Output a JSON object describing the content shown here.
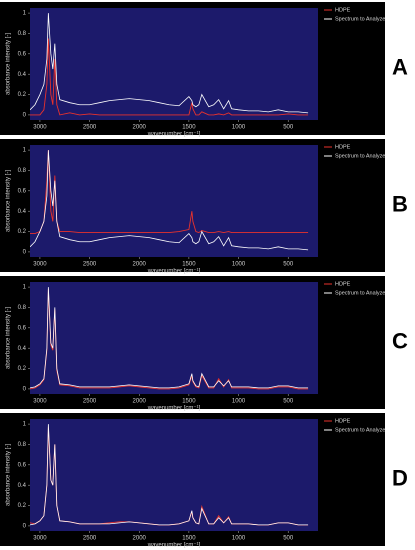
{
  "chart_data": [
    {
      "type": "line",
      "label": "A",
      "x_label": "wavenumber [cm⁻¹]",
      "y_label": "absorbance intensity [-]",
      "background": "#1c1a6b",
      "legend": "right",
      "x": [
        3100,
        3050,
        3000,
        2960,
        2930,
        2915,
        2890,
        2870,
        2850,
        2830,
        2800,
        2700,
        2600,
        2500,
        2400,
        2300,
        2200,
        2100,
        2000,
        1900,
        1800,
        1700,
        1600,
        1500,
        1470,
        1460,
        1430,
        1400,
        1370,
        1300,
        1250,
        1200,
        1150,
        1100,
        1070,
        1000,
        900,
        800,
        700,
        600,
        500,
        400,
        300
      ],
      "xlim": [
        3100,
        200
      ],
      "xticks": [
        3000,
        2500,
        2000,
        1500,
        1000,
        500
      ],
      "ylim": [
        -0.05,
        1.05
      ],
      "yticks": [
        0,
        0.2,
        0.4,
        0.6,
        0.8,
        1
      ],
      "series": [
        {
          "name": "HDPE",
          "color": "#e8322c",
          "values": [
            0,
            0,
            0,
            0.05,
            0.3,
            0.75,
            0.2,
            0.1,
            0.55,
            0.1,
            0,
            0.02,
            0,
            0.01,
            0,
            0,
            0,
            0,
            0,
            0,
            0,
            0,
            0,
            0,
            0.12,
            0.06,
            0,
            0,
            0.03,
            0,
            0,
            0.01,
            0,
            0.02,
            0,
            0,
            0,
            0,
            0,
            0,
            0.01,
            0,
            0
          ]
        },
        {
          "name": "Spectrum to Analyze",
          "color": "#ffffff",
          "values": [
            0.05,
            0.1,
            0.2,
            0.3,
            0.55,
            1.0,
            0.6,
            0.45,
            0.7,
            0.3,
            0.15,
            0.12,
            0.1,
            0.1,
            0.12,
            0.14,
            0.15,
            0.16,
            0.15,
            0.14,
            0.12,
            0.1,
            0.09,
            0.18,
            0.14,
            0.1,
            0.08,
            0.1,
            0.2,
            0.08,
            0.1,
            0.15,
            0.06,
            0.14,
            0.06,
            0.05,
            0.04,
            0.04,
            0.03,
            0.05,
            0.03,
            0.03,
            0.02
          ]
        }
      ]
    },
    {
      "type": "line",
      "label": "B",
      "x_label": "wavenumber [cm⁻¹]",
      "y_label": "absorbance intensity [-]",
      "background": "#1c1a6b",
      "legend": "right",
      "x": [
        3100,
        3050,
        3000,
        2960,
        2930,
        2915,
        2890,
        2870,
        2850,
        2830,
        2800,
        2700,
        2600,
        2500,
        2400,
        2300,
        2200,
        2100,
        2000,
        1900,
        1800,
        1700,
        1600,
        1500,
        1470,
        1460,
        1430,
        1400,
        1370,
        1300,
        1250,
        1200,
        1150,
        1100,
        1070,
        1000,
        900,
        800,
        700,
        600,
        500,
        400,
        300
      ],
      "xlim": [
        3100,
        200
      ],
      "xticks": [
        3000,
        2500,
        2000,
        1500,
        1000,
        500
      ],
      "ylim": [
        -0.05,
        1.05
      ],
      "yticks": [
        0,
        0.2,
        0.4,
        0.6,
        0.8,
        1
      ],
      "series": [
        {
          "name": "HDPE",
          "color": "#e8322c",
          "values": [
            0.18,
            0.18,
            0.2,
            0.3,
            0.7,
            1.0,
            0.4,
            0.3,
            0.75,
            0.3,
            0.2,
            0.2,
            0.19,
            0.19,
            0.19,
            0.19,
            0.19,
            0.19,
            0.19,
            0.19,
            0.19,
            0.19,
            0.2,
            0.22,
            0.4,
            0.3,
            0.2,
            0.19,
            0.21,
            0.19,
            0.19,
            0.2,
            0.19,
            0.2,
            0.19,
            0.19,
            0.19,
            0.19,
            0.19,
            0.19,
            0.19,
            0.19,
            0.19
          ]
        },
        {
          "name": "Spectrum to Analyze",
          "color": "#ffffff",
          "values": [
            0.05,
            0.1,
            0.2,
            0.3,
            0.55,
            1.0,
            0.6,
            0.45,
            0.7,
            0.3,
            0.15,
            0.12,
            0.1,
            0.1,
            0.12,
            0.14,
            0.15,
            0.16,
            0.15,
            0.14,
            0.12,
            0.1,
            0.09,
            0.18,
            0.14,
            0.1,
            0.08,
            0.1,
            0.2,
            0.08,
            0.1,
            0.15,
            0.06,
            0.14,
            0.06,
            0.05,
            0.04,
            0.04,
            0.03,
            0.05,
            0.03,
            0.03,
            0.02
          ]
        }
      ]
    },
    {
      "type": "line",
      "label": "C",
      "x_label": "wavenumber [cm⁻¹]",
      "y_label": "absorbance intensity [-]",
      "background": "#1c1a6b",
      "legend": "right",
      "x": [
        3100,
        3050,
        3000,
        2960,
        2930,
        2915,
        2890,
        2870,
        2850,
        2830,
        2800,
        2700,
        2600,
        2500,
        2400,
        2300,
        2200,
        2100,
        2000,
        1900,
        1800,
        1700,
        1600,
        1500,
        1470,
        1460,
        1430,
        1400,
        1370,
        1300,
        1250,
        1200,
        1150,
        1100,
        1070,
        1000,
        900,
        800,
        700,
        600,
        500,
        400,
        300
      ],
      "xlim": [
        3100,
        200
      ],
      "xticks": [
        3000,
        2500,
        2000,
        1500,
        1000,
        500
      ],
      "ylim": [
        -0.05,
        1.05
      ],
      "yticks": [
        0,
        0.2,
        0.4,
        0.6,
        0.8,
        1
      ],
      "series": [
        {
          "name": "HDPE",
          "color": "#e8322c",
          "values": [
            0,
            0.01,
            0.04,
            0.09,
            0.38,
            0.98,
            0.43,
            0.38,
            0.78,
            0.18,
            0.04,
            0.03,
            0.01,
            0.01,
            0.01,
            0.01,
            0.02,
            0.03,
            0.02,
            0.01,
            0,
            0,
            0.01,
            0.04,
            0.13,
            0.07,
            0.02,
            0.01,
            0.13,
            0.01,
            0.01,
            0.1,
            0.02,
            0.09,
            0.01,
            0.01,
            0.01,
            0,
            0,
            0.02,
            0.02,
            0,
            0
          ]
        },
        {
          "name": "Spectrum to Analyze",
          "color": "#ffffff",
          "values": [
            0.01,
            0.02,
            0.05,
            0.1,
            0.4,
            1.0,
            0.45,
            0.4,
            0.8,
            0.2,
            0.05,
            0.04,
            0.02,
            0.02,
            0.02,
            0.02,
            0.03,
            0.04,
            0.03,
            0.02,
            0.01,
            0.01,
            0.02,
            0.05,
            0.15,
            0.08,
            0.03,
            0.02,
            0.15,
            0.02,
            0.02,
            0.08,
            0.03,
            0.08,
            0.02,
            0.02,
            0.02,
            0.01,
            0.01,
            0.03,
            0.03,
            0.01,
            0.01
          ]
        }
      ]
    },
    {
      "type": "line",
      "label": "D",
      "x_label": "wavenumber [cm⁻¹]",
      "y_label": "absorbance intensity [-]",
      "background": "#1c1a6b",
      "legend": "right",
      "x": [
        3100,
        3050,
        3000,
        2960,
        2930,
        2915,
        2890,
        2870,
        2850,
        2830,
        2800,
        2700,
        2600,
        2500,
        2400,
        2300,
        2200,
        2100,
        2000,
        1900,
        1800,
        1700,
        1600,
        1500,
        1470,
        1460,
        1430,
        1400,
        1370,
        1300,
        1250,
        1200,
        1150,
        1100,
        1070,
        1000,
        900,
        800,
        700,
        600,
        500,
        400,
        300
      ],
      "xlim": [
        3100,
        200
      ],
      "xticks": [
        3000,
        2500,
        2000,
        1500,
        1000,
        500
      ],
      "ylim": [
        -0.05,
        1.05
      ],
      "yticks": [
        0,
        0.2,
        0.4,
        0.6,
        0.8,
        1
      ],
      "series": [
        {
          "name": "HDPE",
          "color": "#e8322c",
          "values": [
            0.03,
            0.02,
            0.05,
            0.1,
            0.4,
            0.97,
            0.45,
            0.4,
            0.8,
            0.2,
            0.05,
            0.04,
            0.02,
            0.02,
            0.02,
            0.03,
            0.04,
            0.04,
            0.03,
            0.02,
            0.01,
            0.01,
            0.02,
            0.05,
            0.14,
            0.08,
            0.03,
            0.02,
            0.19,
            0.02,
            0.02,
            0.1,
            0.03,
            0.09,
            0.02,
            0.02,
            0.02,
            0.01,
            0.01,
            0.03,
            0.03,
            0.01,
            0.01
          ]
        },
        {
          "name": "Spectrum to Analyze",
          "color": "#ffffff",
          "values": [
            0.01,
            0.02,
            0.05,
            0.1,
            0.4,
            1.0,
            0.45,
            0.4,
            0.8,
            0.2,
            0.05,
            0.04,
            0.02,
            0.02,
            0.02,
            0.02,
            0.03,
            0.04,
            0.03,
            0.02,
            0.01,
            0.01,
            0.02,
            0.05,
            0.15,
            0.08,
            0.03,
            0.02,
            0.17,
            0.02,
            0.02,
            0.08,
            0.03,
            0.08,
            0.02,
            0.02,
            0.02,
            0.01,
            0.01,
            0.03,
            0.03,
            0.01,
            0.01
          ]
        }
      ]
    }
  ]
}
